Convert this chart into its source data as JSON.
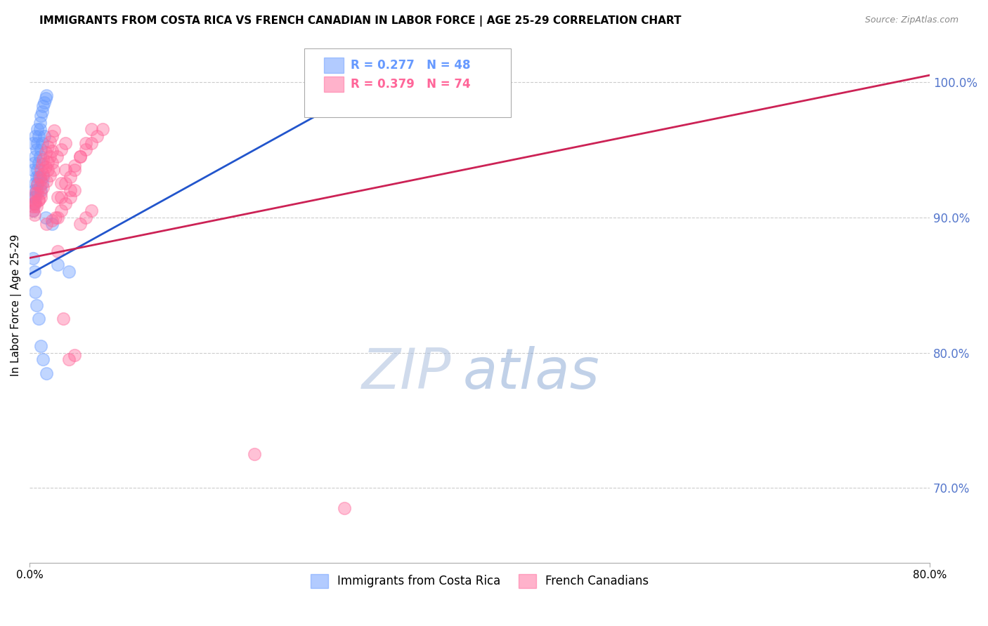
{
  "title": "IMMIGRANTS FROM COSTA RICA VS FRENCH CANADIAN IN LABOR FORCE | AGE 25-29 CORRELATION CHART",
  "source": "Source: ZipAtlas.com",
  "ylabel": "In Labor Force | Age 25-29",
  "right_yticks": [
    70.0,
    80.0,
    90.0,
    100.0
  ],
  "legend_entries": [
    {
      "label": "Immigrants from Costa Rica",
      "R": 0.277,
      "N": 48,
      "color": "#6699ff"
    },
    {
      "label": "French Canadians",
      "R": 0.379,
      "N": 74,
      "color": "#ff6699"
    }
  ],
  "watermark_zip": "ZIP",
  "watermark_atlas": "atlas",
  "blue_scatter_x": [
    0.3,
    0.5,
    0.7,
    0.9,
    1.0,
    1.1,
    1.2,
    1.3,
    1.4,
    1.5,
    0.3,
    0.4,
    0.5,
    0.6,
    0.7,
    0.8,
    0.9,
    1.0,
    1.1,
    1.2,
    0.3,
    0.4,
    0.5,
    0.6,
    0.7,
    0.8,
    0.9,
    1.0,
    1.1,
    1.3,
    0.3,
    0.4,
    0.5,
    0.6,
    0.7,
    0.8,
    1.4,
    2.0,
    2.5,
    0.3,
    0.4,
    0.5,
    0.6,
    0.8,
    1.0,
    1.2,
    1.5,
    3.5
  ],
  "blue_scatter_y": [
    95.5,
    96.0,
    96.5,
    97.0,
    97.5,
    97.8,
    98.2,
    98.5,
    98.8,
    99.0,
    93.5,
    94.0,
    94.5,
    95.0,
    95.5,
    96.0,
    96.5,
    92.0,
    92.5,
    93.0,
    91.5,
    92.0,
    92.5,
    93.0,
    93.5,
    94.0,
    94.5,
    95.0,
    95.5,
    96.0,
    90.5,
    91.0,
    91.5,
    92.0,
    92.5,
    93.0,
    90.0,
    89.5,
    86.5,
    87.0,
    86.0,
    84.5,
    83.5,
    82.5,
    80.5,
    79.5,
    78.5,
    86.0
  ],
  "pink_scatter_x": [
    0.3,
    0.5,
    0.7,
    0.9,
    1.0,
    1.1,
    1.2,
    1.4,
    1.6,
    1.8,
    2.0,
    2.2,
    2.5,
    2.8,
    3.2,
    3.6,
    4.0,
    4.5,
    5.0,
    5.5,
    0.3,
    0.5,
    0.7,
    0.9,
    1.0,
    1.2,
    1.4,
    1.6,
    1.8,
    2.0,
    2.3,
    2.8,
    3.2,
    3.6,
    4.0,
    4.5,
    5.0,
    5.5,
    6.0,
    6.5,
    0.4,
    0.6,
    0.8,
    1.0,
    1.2,
    1.5,
    1.8,
    2.1,
    2.5,
    2.8,
    3.2,
    3.6,
    4.0,
    4.5,
    5.0,
    5.5,
    0.3,
    0.5,
    0.8,
    1.0,
    1.5,
    2.0,
    2.5,
    3.0,
    3.5,
    4.0,
    20.0,
    28.0,
    38.0,
    1.6,
    2.0,
    2.4,
    2.8,
    3.2
  ],
  "pink_scatter_y": [
    91.0,
    91.8,
    92.4,
    93.0,
    93.5,
    93.9,
    94.3,
    94.8,
    95.2,
    95.6,
    96.0,
    96.4,
    91.5,
    92.5,
    93.5,
    92.0,
    93.5,
    94.5,
    95.5,
    96.5,
    90.5,
    91.2,
    91.8,
    92.3,
    92.8,
    93.2,
    93.7,
    94.1,
    94.5,
    94.9,
    90.0,
    91.5,
    92.5,
    93.0,
    93.8,
    94.5,
    95.0,
    95.5,
    96.0,
    96.5,
    90.2,
    90.8,
    91.3,
    91.8,
    92.2,
    92.7,
    93.1,
    93.5,
    90.0,
    90.5,
    91.0,
    91.5,
    92.0,
    89.5,
    90.0,
    90.5,
    90.8,
    91.0,
    91.3,
    91.5,
    89.5,
    89.8,
    87.5,
    82.5,
    79.5,
    79.8,
    72.5,
    68.5,
    100.0,
    93.5,
    94.0,
    94.5,
    95.0,
    95.5
  ],
  "blue_line_x": [
    0.0,
    32.0
  ],
  "blue_line_y": [
    85.8,
    100.5
  ],
  "pink_line_x": [
    0.0,
    80.0
  ],
  "pink_line_y": [
    87.0,
    100.5
  ],
  "xlim": [
    0.0,
    80.0
  ],
  "ylim": [
    64.5,
    102.5
  ],
  "background_color": "#ffffff",
  "grid_color": "#cccccc",
  "title_fontsize": 11,
  "right_tick_color": "#5577cc"
}
